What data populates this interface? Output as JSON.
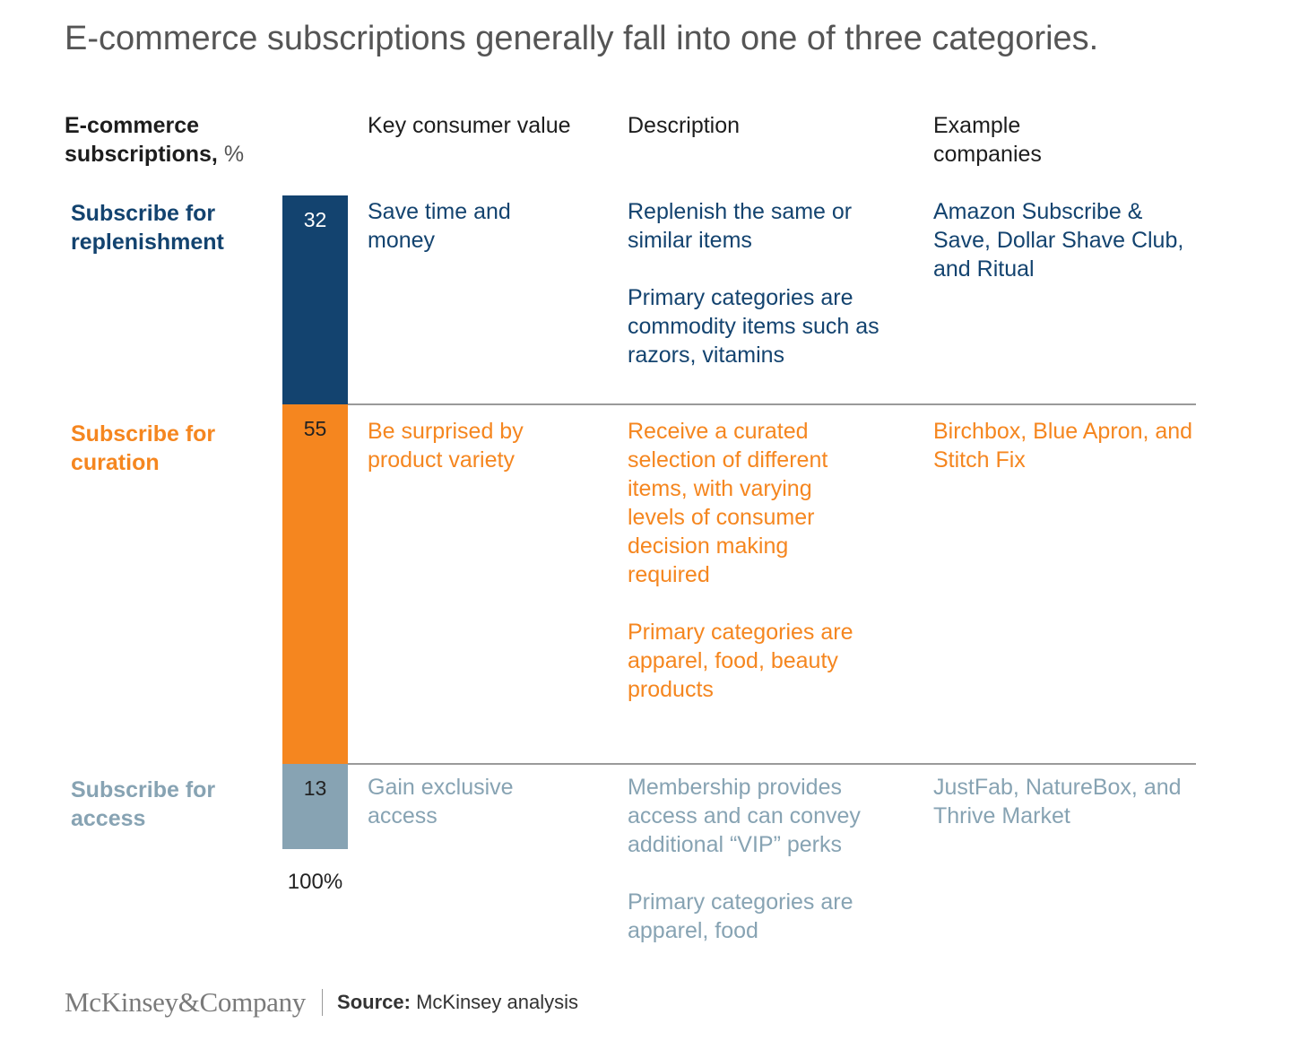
{
  "title": "E-commerce subscriptions generally fall into one of three categories.",
  "headers": {
    "left_main": "E-commerce subscriptions,",
    "left_unit": "%",
    "key_value": "Key consumer value",
    "description": "Description",
    "examples": "Example companies"
  },
  "colors": {
    "replenishment": "#13436f",
    "curation": "#f5861f",
    "access": "#87a3b3"
  },
  "rows": [
    {
      "category": "Subscribe for replenishment",
      "value_label": "32",
      "key_value": "Save time and money",
      "description": [
        "Replenish the same or similar items",
        "Primary categories are commodity items such as razors, vitamins"
      ],
      "examples": "Amazon Subscribe & Save, Dollar Shave Club, and Ritual"
    },
    {
      "category": "Subscribe for curation",
      "value_label": "55",
      "key_value": "Be surprised by product variety",
      "description": [
        "Receive a curated selection of different items, with varying levels of consumer decision making required",
        "Primary categories are apparel, food, beauty products"
      ],
      "examples": "Birchbox, Blue Apron, and Stitch Fix"
    },
    {
      "category": "Subscribe for access",
      "value_label": "13",
      "key_value": "Gain exclusive access",
      "description": [
        "Membership provides access and can convey additional “VIP” perks",
        "Primary categories are apparel, food"
      ],
      "examples": "JustFab, NatureBox, and Thrive Market"
    }
  ],
  "total_label": "100%",
  "chart_data": {
    "type": "bar",
    "stacked": true,
    "orientation": "vertical",
    "ylabel": "E-commerce subscriptions, %",
    "categories": [
      "Subscribe for replenishment",
      "Subscribe for curation",
      "Subscribe for access"
    ],
    "values": [
      32,
      55,
      13
    ],
    "total": 100
  },
  "footer": {
    "logo": "McKinsey&Company",
    "source_label": "Source:",
    "source_text": "McKinsey analysis"
  }
}
